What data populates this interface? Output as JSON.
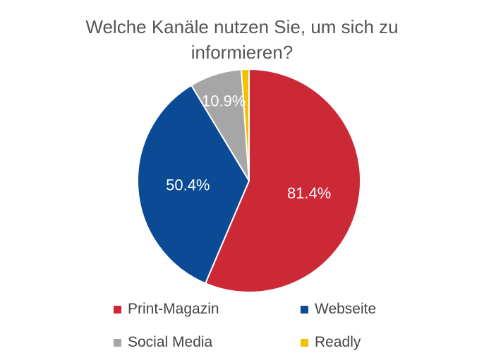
{
  "chart_data": {
    "type": "pie",
    "title": "Welche Kanäle nutzen Sie, um sich zu informieren?",
    "slices": [
      {
        "name": "Print-Magazin",
        "value": 81.4,
        "label": "81.4%",
        "color": "#CC2936"
      },
      {
        "name": "Webseite",
        "value": 50.4,
        "label": "50.4%",
        "color": "#0B4A94"
      },
      {
        "name": "Social Media",
        "value": 10.9,
        "label": "10.9%",
        "color": "#A6A6A6"
      },
      {
        "name": "Readly",
        "value": 1.6,
        "label": "",
        "color": "#F2C200"
      }
    ],
    "legend_position": "bottom"
  }
}
